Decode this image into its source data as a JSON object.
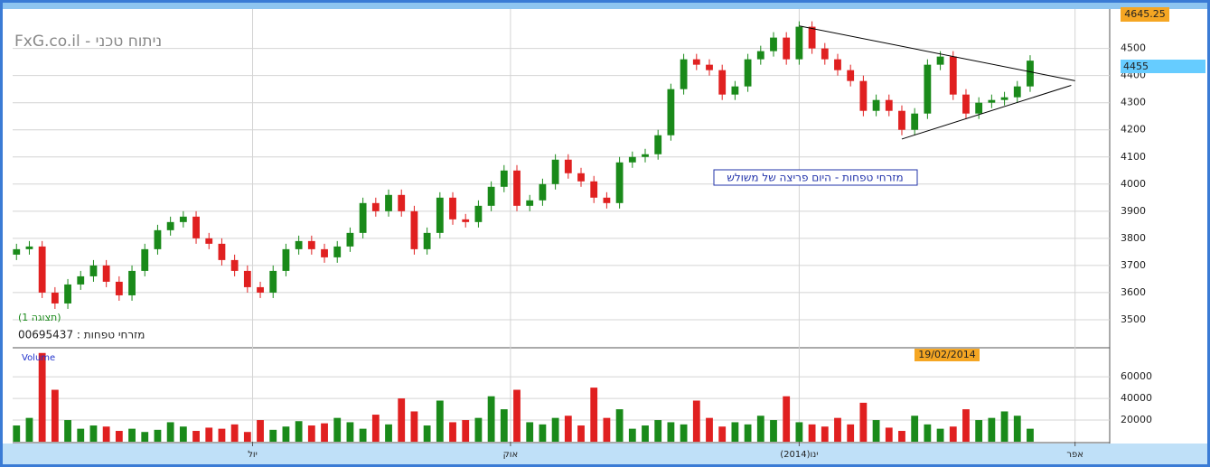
{
  "chart_data": {
    "type": "candlestick",
    "title": "FxG.co.il - ניתוח טכני",
    "view_label": "(תצוגה 1)",
    "symbol_label": "מזרחי טפחות : 00695437",
    "annotation": "מזרחי טפחות - היום פריצה של משולש",
    "volume_label": "Volume",
    "date_label": "19/02/2014",
    "up_color": "#1a8a1a",
    "down_color": "#e02020",
    "xlim": [
      -0.3,
      85.2
    ],
    "xticks": [
      {
        "value": 18.4,
        "label": "יול"
      },
      {
        "value": 38.5,
        "label": "אוק"
      },
      {
        "value": 61,
        "label": "ינו(2014)"
      },
      {
        "value": 82.5,
        "label": "אפר"
      }
    ],
    "ylim": [
      3400,
      4645.25
    ],
    "yticks": [
      3500,
      3600,
      3700,
      3800,
      3900,
      4000,
      4100,
      4200,
      4300,
      4400,
      4500
    ],
    "grid": true,
    "open": [
      3740,
      3760,
      3770,
      3600,
      3560,
      3630,
      3660,
      3700,
      3640,
      3590,
      3680,
      3760,
      3830,
      3860,
      3880,
      3800,
      3780,
      3720,
      3680,
      3620,
      3600,
      3680,
      3760,
      3790,
      3760,
      3730,
      3770,
      3820,
      3930,
      3900,
      3960,
      3900,
      3760,
      3820,
      3950,
      3870,
      3860,
      3920,
      3990,
      4050,
      3920,
      3940,
      4000,
      4090,
      4040,
      4010,
      3950,
      3930,
      4080,
      4100,
      4110,
      4180,
      4350,
      4460,
      4440,
      4420,
      4330,
      4360,
      4460,
      4490,
      4540,
      4460,
      4580,
      4500,
      4460,
      4420,
      4380,
      4270,
      4310,
      4270,
      4200,
      4260,
      4440,
      4470,
      4330,
      4260,
      4300,
      4310,
      4320,
      4360
    ],
    "high": [
      3780,
      3790,
      3790,
      3620,
      3650,
      3680,
      3720,
      3720,
      3660,
      3700,
      3780,
      3850,
      3880,
      3900,
      3900,
      3820,
      3800,
      3740,
      3700,
      3640,
      3700,
      3780,
      3810,
      3810,
      3780,
      3790,
      3840,
      3950,
      3950,
      3980,
      3980,
      3920,
      3840,
      3970,
      3970,
      3890,
      3940,
      4010,
      4070,
      4070,
      3960,
      4020,
      4110,
      4110,
      4060,
      4030,
      3970,
      4100,
      4120,
      4130,
      4200,
      4370,
      4480,
      4480,
      4460,
      4440,
      4380,
      4480,
      4510,
      4560,
      4560,
      4600,
      4600,
      4520,
      4480,
      4440,
      4400,
      4330,
      4330,
      4290,
      4280,
      4460,
      4490,
      4490,
      4350,
      4320,
      4330,
      4340,
      4380,
      4475
    ],
    "low": [
      3720,
      3740,
      3580,
      3540,
      3540,
      3610,
      3640,
      3620,
      3570,
      3570,
      3660,
      3740,
      3810,
      3840,
      3780,
      3760,
      3700,
      3660,
      3600,
      3580,
      3580,
      3660,
      3740,
      3740,
      3710,
      3710,
      3750,
      3800,
      3880,
      3880,
      3880,
      3740,
      3740,
      3800,
      3850,
      3840,
      3840,
      3900,
      3970,
      3900,
      3900,
      3920,
      3980,
      4020,
      3990,
      3930,
      3910,
      3910,
      4060,
      4080,
      4090,
      4160,
      4330,
      4420,
      4400,
      4310,
      4310,
      4340,
      4440,
      4470,
      4440,
      4440,
      4480,
      4440,
      4400,
      4360,
      4250,
      4250,
      4250,
      4180,
      4180,
      4240,
      4420,
      4310,
      4240,
      4240,
      4280,
      4290,
      4300,
      4340
    ],
    "close": [
      3760,
      3770,
      3600,
      3560,
      3630,
      3660,
      3700,
      3640,
      3590,
      3680,
      3760,
      3830,
      3860,
      3880,
      3800,
      3780,
      3720,
      3680,
      3620,
      3600,
      3680,
      3760,
      3790,
      3760,
      3730,
      3770,
      3820,
      3930,
      3900,
      3960,
      3900,
      3760,
      3820,
      3950,
      3870,
      3860,
      3920,
      3990,
      4050,
      3920,
      3940,
      4000,
      4090,
      4040,
      4010,
      3950,
      3930,
      4080,
      4100,
      4110,
      4180,
      4350,
      4460,
      4440,
      4420,
      4330,
      4360,
      4460,
      4490,
      4540,
      4460,
      4580,
      4500,
      4460,
      4420,
      4380,
      4270,
      4310,
      4270,
      4200,
      4260,
      4440,
      4470,
      4330,
      4260,
      4300,
      4310,
      4320,
      4360,
      4455
    ],
    "volume": [
      15000,
      22000,
      82000,
      48000,
      20000,
      12000,
      15000,
      14000,
      10000,
      12000,
      9000,
      11000,
      18000,
      14000,
      10000,
      13000,
      12000,
      16000,
      9000,
      20000,
      11000,
      14000,
      19000,
      15000,
      17000,
      22000,
      18000,
      12000,
      25000,
      16000,
      40000,
      28000,
      15000,
      38000,
      18000,
      20000,
      22000,
      42000,
      30000,
      48000,
      18000,
      16000,
      22000,
      24000,
      15000,
      50000,
      22000,
      30000,
      12000,
      15000,
      20000,
      18000,
      16000,
      38000,
      22000,
      14000,
      18000,
      16000,
      24000,
      20000,
      42000,
      18000,
      16000,
      14000,
      22000,
      16000,
      36000,
      20000,
      13000,
      10000,
      24000,
      16000,
      12000,
      14000,
      30000,
      20000,
      22000,
      28000,
      24000,
      12000
    ],
    "volume_ylim": [
      0,
      86000
    ],
    "volume_yticks": [
      20000,
      40000,
      60000
    ],
    "trendlines": [
      {
        "x": [
          61,
          82.5
        ],
        "y": [
          4583,
          4381
        ]
      },
      {
        "x": [
          69,
          82.2
        ],
        "y": [
          4166,
          4364
        ]
      }
    ]
  }
}
